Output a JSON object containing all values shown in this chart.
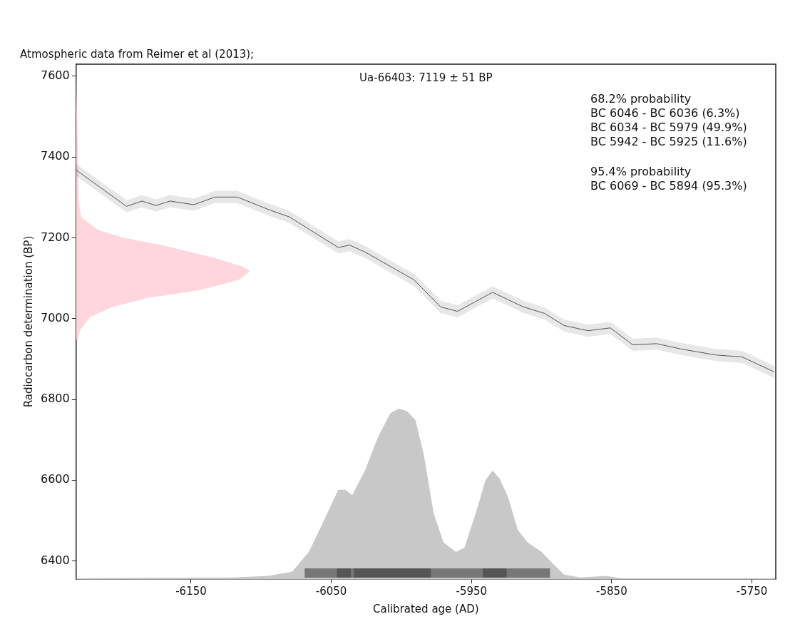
{
  "chart_data": {
    "type": "line",
    "title": "Atmospheric data from Reimer et al (2013);",
    "xlabel": "Calibrated age (AD)",
    "ylabel": "Radiocarbon determination (BP)",
    "annotations": [
      "Ua-66403: 7119 ± 51 BP",
      "68.2% probability",
      "BC 6046 - BC 6036 (6.3%)",
      "BC 6034 - BC 5979 (49.9%)",
      "BC 5942 - BC 5925 (11.6%)",
      "95.4% probability",
      "BC 6069 - BC 5894 (95.3%)"
    ],
    "xlim": [
      -6232,
      -5733
    ],
    "xticks": [
      -6150,
      -6050,
      -5950,
      -5850,
      -5750
    ],
    "ylim": [
      6355,
      7630
    ],
    "yticks": [
      6400,
      6600,
      6800,
      7000,
      7200,
      7400,
      7600
    ],
    "grid": false,
    "legend": false,
    "series": [
      {
        "color": "#555555",
        "x": [
          -6232,
          -6196,
          -6185,
          -6175,
          -6165,
          -6148,
          -6133,
          -6117,
          -6094,
          -6080,
          -6045,
          -6037,
          -6026,
          -5991,
          -5972,
          -5960,
          -5935,
          -5913,
          -5898,
          -5884,
          -5867,
          -5851,
          -5835,
          -5818,
          -5801,
          -5776,
          -5757,
          -5734
        ],
        "values": [
          7368,
          7278,
          7291,
          7280,
          7291,
          7282,
          7301,
          7301,
          7269,
          7252,
          7176,
          7182,
          7165,
          7096,
          7029,
          7018,
          7065,
          7029,
          7013,
          6983,
          6970,
          6977,
          6935,
          6938,
          6925,
          6910,
          6905,
          6868
        ],
        "lower": [
          7353,
          7263,
          7276,
          7265,
          7276,
          7267,
          7286,
          7286,
          7254,
          7237,
          7161,
          7167,
          7150,
          7081,
          7014,
          7003,
          7050,
          7014,
          6998,
          6968,
          6955,
          6962,
          6920,
          6923,
          6910,
          6895,
          6890,
          6853
        ],
        "upper": [
          7383,
          7293,
          7306,
          7295,
          7306,
          7297,
          7316,
          7316,
          7284,
          7267,
          7191,
          7197,
          7180,
          7111,
          7044,
          7033,
          7080,
          7044,
          7028,
          6998,
          6985,
          6992,
          6950,
          6953,
          6940,
          6925,
          6920,
          6883
        ]
      },
      {
        "type": "area",
        "color": "#ffd6dd",
        "x": [
          -6232,
          -6230,
          -6228.5,
          -6216,
          -6198,
          -6171,
          -6135,
          -6114,
          -6108,
          -6116,
          -6144,
          -6180,
          -6207,
          -6222,
          -6229,
          -6231
        ],
        "values": [
          7628,
          7288,
          7251,
          7219,
          7200,
          7182,
          7152,
          7130,
          7117,
          7096,
          7070,
          7052,
          7028,
          7004,
          6972,
          6948
        ]
      },
      {
        "type": "area",
        "color": "#c8c8c8",
        "x": [
          -6232,
          -6120,
          -6095,
          -6078,
          -6066,
          -6055,
          -6045,
          -6040,
          -6035,
          -6026,
          -6017,
          -6008,
          -6002,
          -5996,
          -5990,
          -5984,
          -5977,
          -5970,
          -5961,
          -5955,
          -5947,
          -5940,
          -5935,
          -5930,
          -5924,
          -5917,
          -5910,
          -5900,
          -5891,
          -5884,
          -5872,
          -5854,
          -5844,
          -5733
        ],
        "values": [
          6357,
          6359,
          6363,
          6373,
          6422,
          6502,
          6576,
          6576,
          6563,
          6624,
          6704,
          6765,
          6777,
          6771,
          6749,
          6663,
          6518,
          6446,
          6422,
          6433,
          6518,
          6600,
          6624,
          6604,
          6559,
          6477,
          6446,
          6422,
          6390,
          6366,
          6359,
          6363,
          6357,
          6357
        ]
      },
      {
        "type": "line",
        "color": "#777777",
        "x": [
          -6069,
          -5894
        ],
        "values": [
          6370,
          6370
        ]
      },
      {
        "type": "line",
        "color": "#555555",
        "x": [
          -6046,
          -6036
        ],
        "values": [
          6370,
          6370
        ]
      },
      {
        "type": "line",
        "color": "#555555",
        "x": [
          -6034,
          -5979
        ],
        "values": [
          6370,
          6370
        ]
      },
      {
        "type": "line",
        "color": "#555555",
        "x": [
          -5942,
          -5925
        ],
        "values": [
          6370,
          6370
        ]
      }
    ]
  }
}
